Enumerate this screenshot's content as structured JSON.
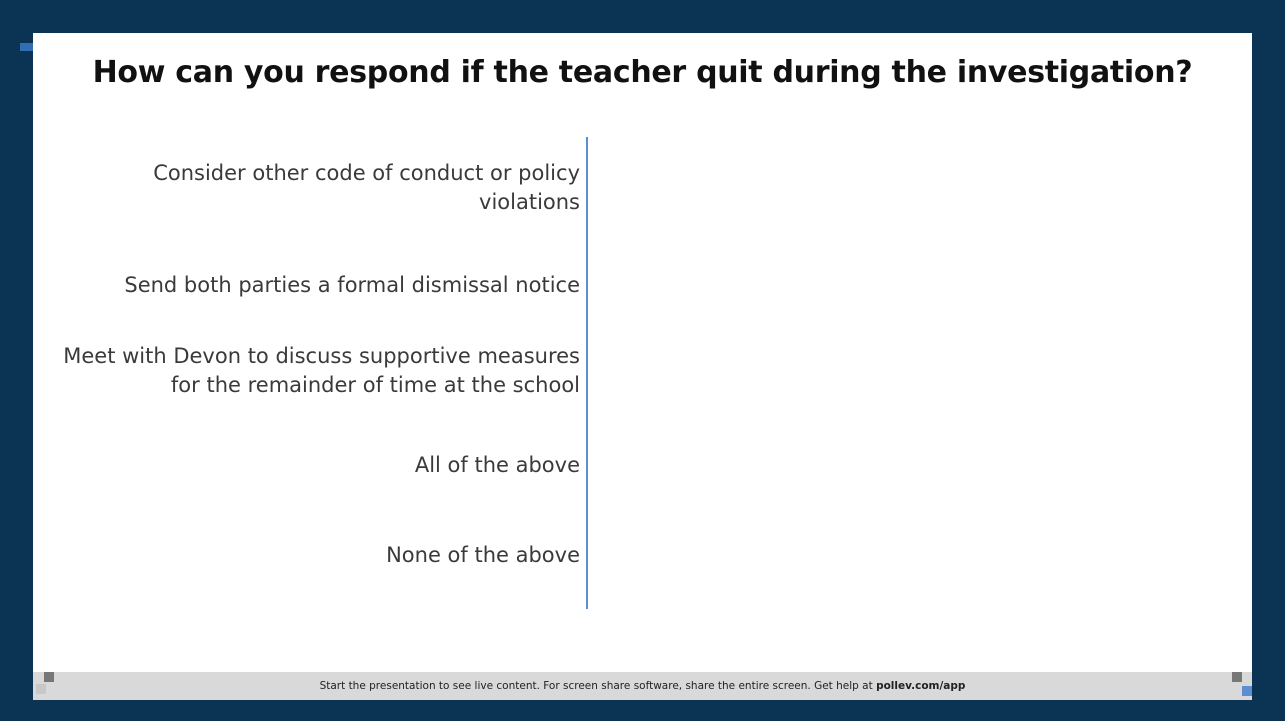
{
  "title": "How can you respond if the teacher quit during the investigation?",
  "options": [
    {
      "lines": [
        "Consider other code of conduct or policy",
        "violations"
      ]
    },
    {
      "lines": [
        "Send both parties a formal dismissal notice"
      ]
    },
    {
      "lines": [
        "Meet with Devon to discuss supportive measures",
        "for the remainder of time at the school"
      ]
    },
    {
      "lines": [
        "All of the above"
      ]
    },
    {
      "lines": [
        "None of the above"
      ]
    }
  ],
  "footer": {
    "text": "Start the presentation to see live content. For screen share software, share the entire screen. Get help at ",
    "link": "pollev.com/app"
  }
}
